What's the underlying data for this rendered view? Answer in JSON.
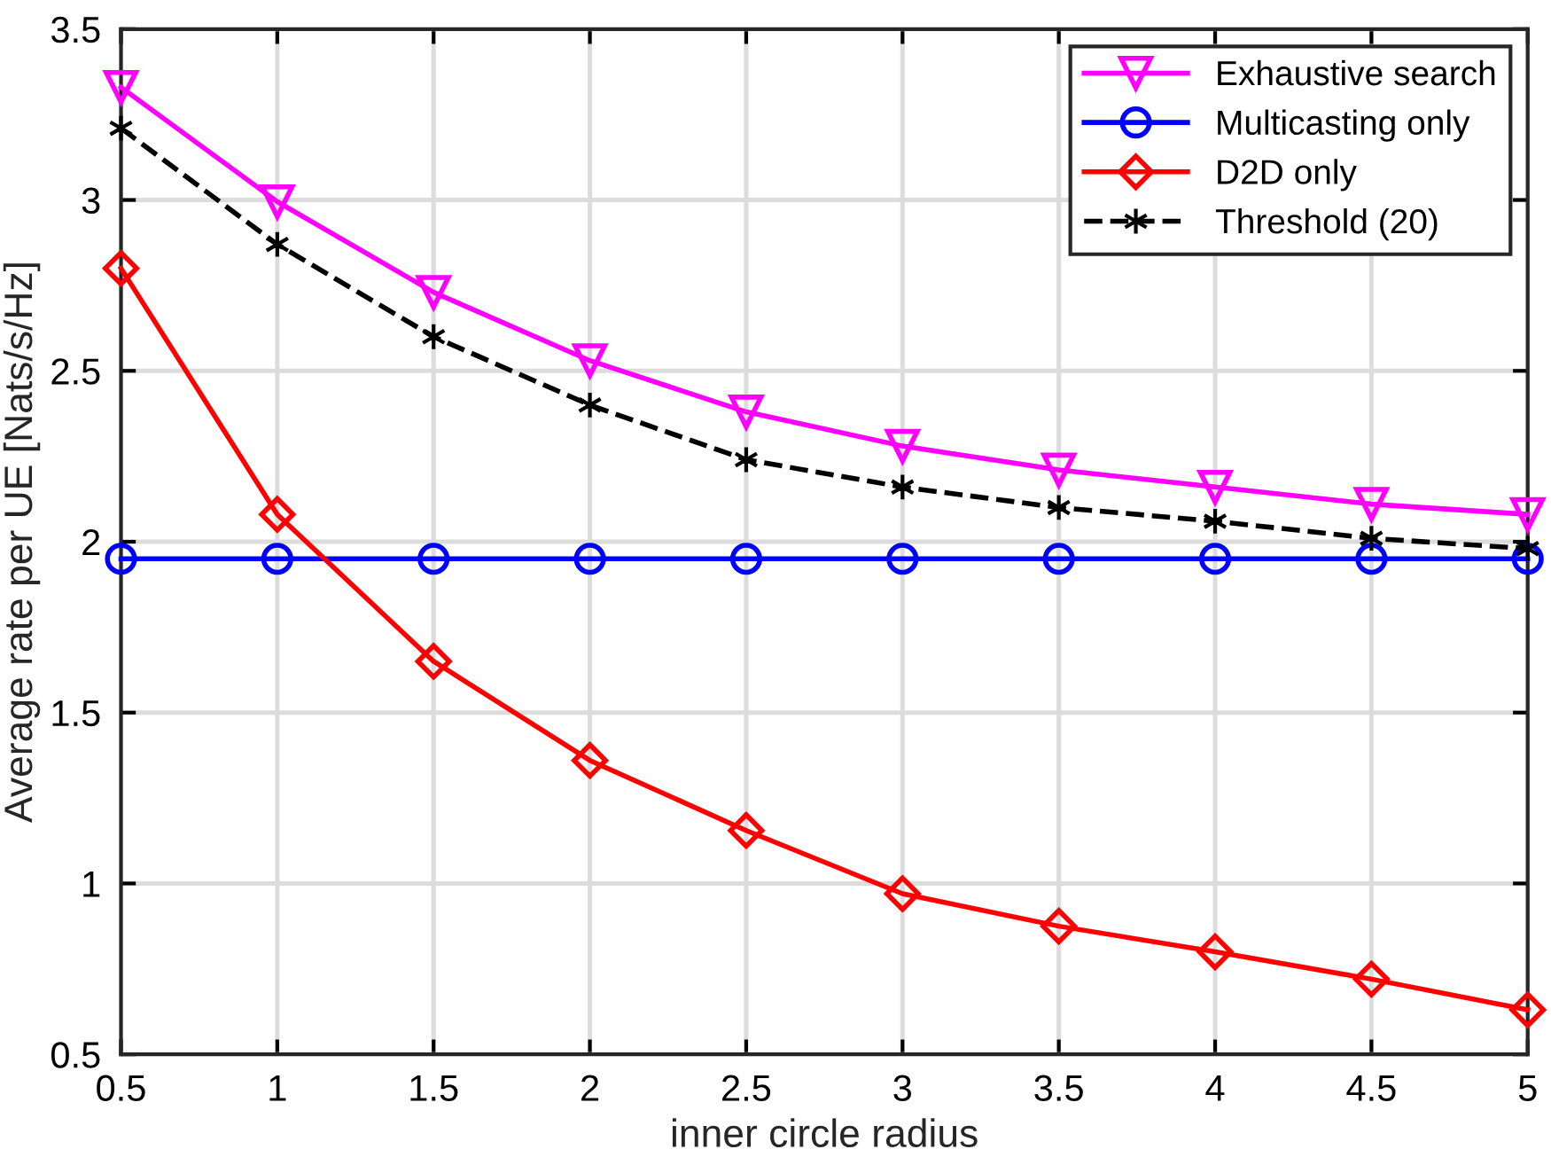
{
  "chart_data": {
    "type": "line",
    "xlabel": "inner circle radius",
    "ylabel": "Average rate per UE [Nats/s/Hz]",
    "x": [
      0.5,
      1,
      1.5,
      2,
      2.5,
      3,
      3.5,
      4,
      4.5,
      5
    ],
    "series": [
      {
        "name": "Exhaustive search",
        "color": "#ff00ff",
        "marker": "triangle",
        "line_style": "solid",
        "values": [
          3.33,
          2.995,
          2.73,
          2.53,
          2.38,
          2.28,
          2.21,
          2.16,
          2.11,
          2.08
        ]
      },
      {
        "name": "Multicasting only",
        "color": "#0000ff",
        "marker": "circle",
        "line_style": "solid",
        "values": [
          1.95,
          1.95,
          1.95,
          1.95,
          1.95,
          1.95,
          1.95,
          1.95,
          1.95,
          1.95
        ]
      },
      {
        "name": "D2D only",
        "color": "#ff0000",
        "marker": "diamond",
        "line_style": "solid",
        "values": [
          2.8,
          2.08,
          1.65,
          1.36,
          1.155,
          0.97,
          0.875,
          0.8,
          0.72,
          0.63
        ]
      },
      {
        "name": "Threshold (20)",
        "color": "#000000",
        "marker": "cross",
        "line_style": "dashed",
        "values": [
          3.21,
          2.87,
          2.6,
          2.4,
          2.24,
          2.16,
          2.1,
          2.06,
          2.01,
          1.98
        ]
      }
    ],
    "xlim": [
      0.5,
      5
    ],
    "xticks": [
      0.5,
      1,
      1.5,
      2,
      2.5,
      3,
      3.5,
      4,
      4.5,
      5
    ],
    "ylim": [
      0.5,
      3.5
    ],
    "yticks": [
      0.5,
      1,
      1.5,
      2,
      2.5,
      3,
      3.5
    ],
    "grid": true,
    "legend": "top right"
  }
}
